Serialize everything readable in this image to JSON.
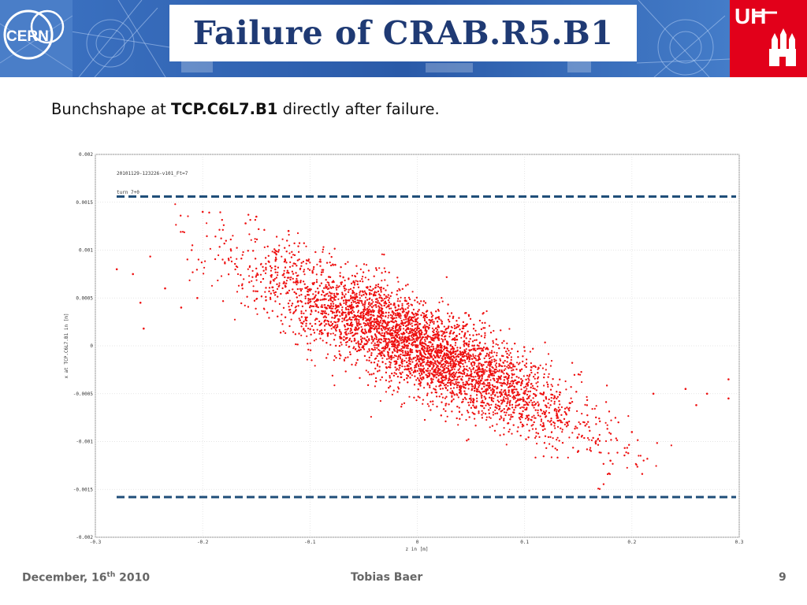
{
  "slide": {
    "title": "Failure of CRAB.R5.B1",
    "subtitle_prefix": "Bunchshape at ",
    "subtitle_bold": "TCP.C6L7.B1",
    "subtitle_suffix": " directly after failure.",
    "logo_left_text": "CERN",
    "logo_right_text": "UH"
  },
  "footer": {
    "date_prefix": "December, 16",
    "date_sup": "th",
    "date_suffix": " 2010",
    "author": "Tobias Baer",
    "page": "9"
  },
  "colors": {
    "title": "#1f3a74",
    "banner": "#2a5aa8",
    "uhh_red": "#e2001a",
    "points": "#ee1111",
    "aperture_lines": "#1f4e79"
  },
  "chart_data": {
    "type": "scatter",
    "annotations": [
      "20101129-123226-v101_Ft=7",
      "turn 7+0"
    ],
    "xlabel": "z in [m]",
    "ylabel": "x at TCP.C6L7.B1 in [m]",
    "xlim": [
      -0.3,
      0.3
    ],
    "ylim": [
      -0.002,
      0.002
    ],
    "xticks": [
      "-0.3",
      "-0.2",
      "-0.1",
      "0",
      "0.1",
      "0.2",
      "0.3"
    ],
    "yticks": [
      "0.002",
      "0.0015",
      "0.001",
      "0.0005",
      "0",
      "-0.0005",
      "-0.001",
      "-0.0015",
      "-0.002"
    ],
    "grid": true,
    "reference_lines": [
      0.00156,
      -0.00158
    ],
    "distribution": {
      "points": 7000,
      "x_mean": 0.0,
      "x_std": 0.075,
      "slope": -0.0052,
      "y_noise_std": 0.00024
    },
    "sample_points": [
      [
        -0.28,
        0.0008
      ],
      [
        -0.265,
        0.00075
      ],
      [
        -0.258,
        0.00045
      ],
      [
        -0.255,
        0.00018
      ],
      [
        -0.235,
        0.0006
      ],
      [
        -0.22,
        0.0004
      ],
      [
        -0.205,
        0.0005
      ],
      [
        -0.2,
        0.0014
      ],
      [
        -0.16,
        0.00128
      ],
      [
        -0.15,
        0.00135
      ],
      [
        -0.12,
        0.0012
      ],
      [
        0.0,
        0.0
      ],
      [
        0.05,
        -0.0003
      ],
      [
        0.1,
        -0.0005
      ],
      [
        0.15,
        -0.0011
      ],
      [
        0.18,
        -0.0012
      ],
      [
        0.2,
        -0.0009
      ],
      [
        0.22,
        -0.0005
      ],
      [
        0.25,
        -0.00045
      ],
      [
        0.26,
        -0.00062
      ],
      [
        0.27,
        -0.0005
      ],
      [
        0.29,
        -0.00035
      ],
      [
        0.29,
        -0.00055
      ]
    ]
  }
}
